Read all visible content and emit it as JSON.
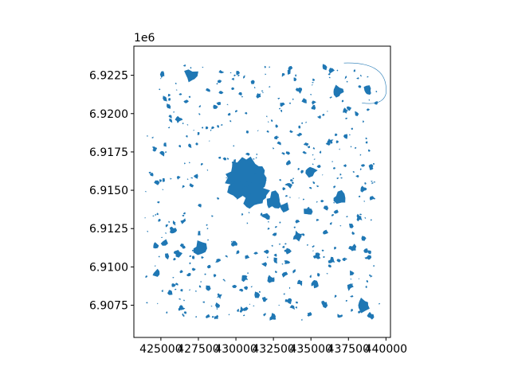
{
  "chart_data": {
    "type": "map",
    "title": "",
    "xlabel": "",
    "ylabel": "",
    "fill_color": "#1f77b4",
    "xlim": [
      423200,
      440300
    ],
    "ylim": [
      6905400,
      6924400
    ],
    "x_ticks": [
      425000,
      427500,
      430000,
      432500,
      435000,
      437500,
      440000
    ],
    "x_tick_labels": [
      "425000",
      "427500",
      "430000",
      "432500",
      "435000",
      "437500",
      "440000"
    ],
    "y_ticks": [
      6907500,
      6910000,
      6912500,
      6915000,
      6917500,
      6920000,
      6922500
    ],
    "y_tick_labels": [
      "6.9075",
      "6.9100",
      "6.9125",
      "6.9150",
      "6.9175",
      "6.9200",
      "6.9225"
    ],
    "y_offset_label": "1e6",
    "main_feature_center": [
      430800,
      6915400
    ],
    "major_patches": [
      [
        427000,
        6922450,
        1.4
      ],
      [
        425100,
        6922550,
        0.6
      ],
      [
        436800,
        6921400,
        1.0
      ],
      [
        438800,
        6921500,
        0.9
      ],
      [
        434200,
        6921550,
        0.6
      ],
      [
        431500,
        6921200,
        0.5
      ],
      [
        435200,
        6920400,
        0.5
      ],
      [
        437300,
        6920200,
        0.5
      ],
      [
        433100,
        6920600,
        0.4
      ],
      [
        426200,
        6919600,
        0.6
      ],
      [
        436300,
        6918200,
        0.6
      ],
      [
        434700,
        6918000,
        0.5
      ],
      [
        424600,
        6917700,
        0.5
      ],
      [
        433500,
        6916800,
        0.5
      ],
      [
        435000,
        6916300,
        1.0
      ],
      [
        439000,
        6916500,
        0.5
      ],
      [
        438500,
        6915100,
        0.6
      ],
      [
        436900,
        6914500,
        1.4
      ],
      [
        433300,
        6913900,
        1.0
      ],
      [
        434800,
        6913600,
        0.8
      ],
      [
        432000,
        6913300,
        0.7
      ],
      [
        438200,
        6913200,
        0.6
      ],
      [
        425800,
        6912400,
        0.6
      ],
      [
        434100,
        6912000,
        0.8
      ],
      [
        437800,
        6911200,
        0.7
      ],
      [
        424700,
        6911400,
        0.6
      ],
      [
        427600,
        6911200,
        1.2
      ],
      [
        426100,
        6910900,
        0.8
      ],
      [
        429900,
        6911500,
        0.7
      ],
      [
        432000,
        6911000,
        0.5
      ],
      [
        435400,
        6910700,
        0.7
      ],
      [
        438800,
        6910600,
        0.6
      ],
      [
        428800,
        6910400,
        0.5
      ],
      [
        433400,
        6910300,
        0.5
      ],
      [
        436400,
        6910400,
        0.6
      ],
      [
        424700,
        6909600,
        0.7
      ],
      [
        426900,
        6909500,
        0.5
      ],
      [
        430600,
        6909300,
        0.6
      ],
      [
        432300,
        6909200,
        0.6
      ],
      [
        434300,
        6909000,
        0.6
      ],
      [
        435300,
        6908900,
        0.8
      ],
      [
        437600,
        6908700,
        0.6
      ],
      [
        425600,
        6908300,
        0.5
      ],
      [
        428900,
        6908100,
        0.5
      ],
      [
        431900,
        6907900,
        0.6
      ],
      [
        433600,
        6907800,
        0.6
      ],
      [
        435900,
        6907600,
        0.6
      ],
      [
        438500,
        6907500,
        1.2
      ],
      [
        426400,
        6907300,
        0.5
      ],
      [
        430400,
        6907200,
        0.5
      ],
      [
        432500,
        6906700,
        0.7
      ],
      [
        434900,
        6906900,
        0.5
      ],
      [
        439000,
        6906800,
        0.6
      ],
      [
        428700,
        6906700,
        0.4
      ]
    ]
  }
}
